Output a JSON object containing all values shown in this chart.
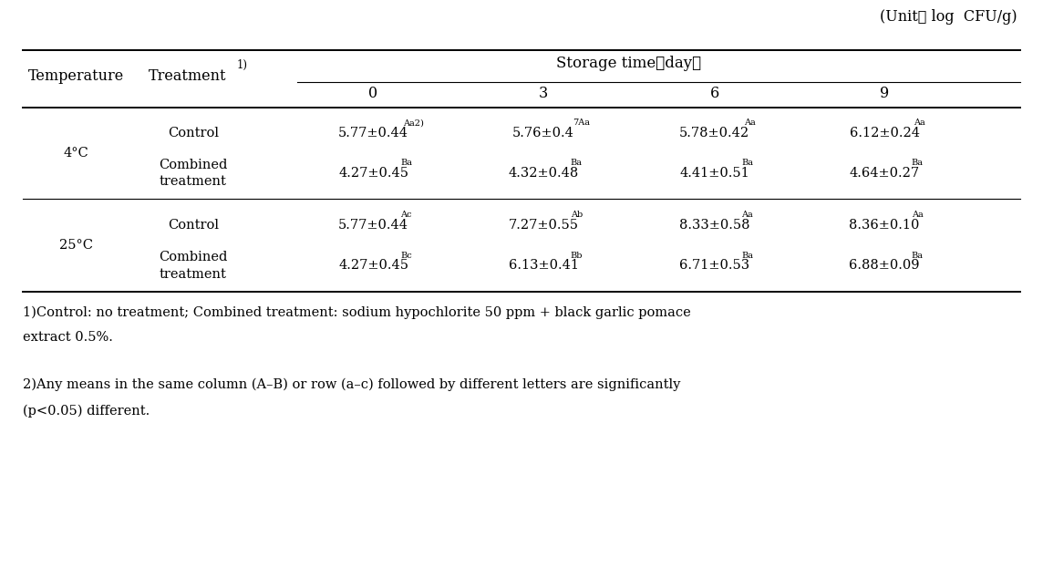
{
  "unit_label": "(Unit： log  CFU/g)",
  "storage_time_header": "Storage time（day）",
  "col_day_headers": [
    "0",
    "3",
    "6",
    "9"
  ],
  "temp_header": "Temperature",
  "treat_header": "Treatment",
  "treat_superscript": "1)",
  "rows_4c": {
    "temp": "4°C",
    "control": {
      "label": "Control",
      "values": [
        "5.77±0.44",
        "5.76±0.4",
        "5.78±0.42",
        "6.12±0.24"
      ],
      "superscripts": [
        "Aa2)",
        "7Aa",
        "Aa",
        "Aa"
      ]
    },
    "combined": {
      "label": "Combined\ntreatment",
      "values": [
        "4.27±0.45",
        "4.32±0.48",
        "4.41±0.51",
        "4.64±0.27"
      ],
      "superscripts": [
        "Ba",
        "Ba",
        "Ba",
        "Ba"
      ]
    }
  },
  "rows_25c": {
    "temp": "25°C",
    "control": {
      "label": "Control",
      "values": [
        "5.77±0.44",
        "7.27±0.55",
        "8.33±0.58",
        "8.36±0.10"
      ],
      "superscripts": [
        "Ac",
        "Ab",
        "Aa",
        "Aa"
      ]
    },
    "combined": {
      "label": "Combined\ntreatment",
      "values": [
        "4.27±0.45",
        "6.13±0.41",
        "6.71±0.53",
        "6.88±0.09"
      ],
      "superscripts": [
        "Bc",
        "Bb",
        "Ba",
        "Ba"
      ]
    }
  },
  "footnote1": "1)Control: no treatment; Combined treatment: sodium hypochlorite 50 ppm + black garlic pomace\nextract 0.5%.",
  "footnote2": "2)Any means in the same column (A–B) or row (a–c) followed by different letters are significantly\n(p<0.05) different.",
  "bg_color": "#ffffff",
  "text_color": "#000000",
  "line_color": "#000000",
  "font_size": 10.5,
  "header_font_size": 11.5,
  "footnote_font_size": 10.5
}
